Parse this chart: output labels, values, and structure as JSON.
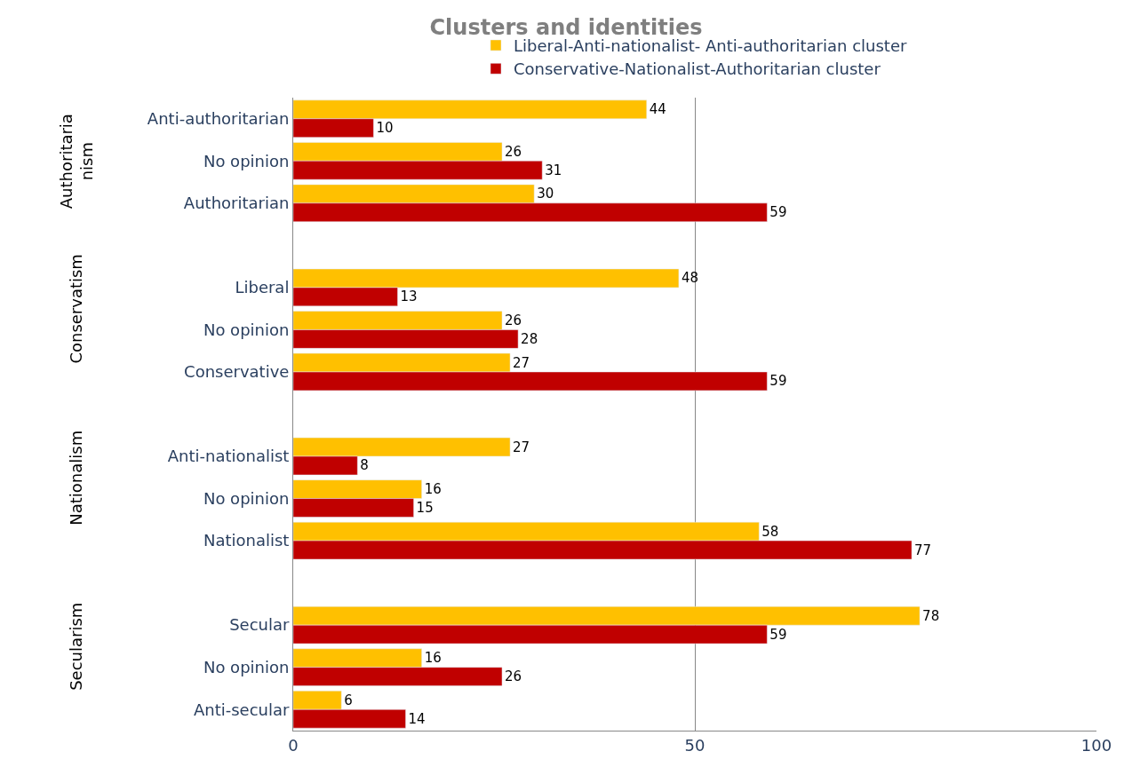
{
  "chart_data": {
    "type": "bar",
    "orientation": "horizontal",
    "title": "Clusters and identities",
    "categories": [
      "Anti-authoritarian",
      "No opinion",
      "Authoritarian",
      null,
      "Liberal",
      "No opinion",
      "Conservative",
      null,
      "Anti-nationalist",
      "No opinion",
      "Nationalist",
      null,
      "Secular",
      "No opinion",
      "Anti-secular"
    ],
    "series": [
      {
        "name": "Liberal-Anti-nationalist- Anti-authoritarian cluster",
        "color": "#ffc000",
        "values": [
          44,
          26,
          30,
          null,
          48,
          26,
          27,
          null,
          27,
          16,
          58,
          null,
          78,
          16,
          6
        ]
      },
      {
        "name": "Conservative-Nationalist-Authoritarian cluster",
        "color": "#c00000",
        "values": [
          10,
          31,
          59,
          null,
          13,
          28,
          59,
          null,
          8,
          15,
          77,
          null,
          59,
          26,
          14
        ]
      }
    ],
    "annotations": [
      "Authoritaria\nnism",
      "Conservatism",
      "Nationalism",
      "Secularism"
    ],
    "xlim": [
      0,
      100
    ],
    "xticks": [
      0,
      50,
      100
    ],
    "grid": "x",
    "legend": "top",
    "data_labels": true
  }
}
